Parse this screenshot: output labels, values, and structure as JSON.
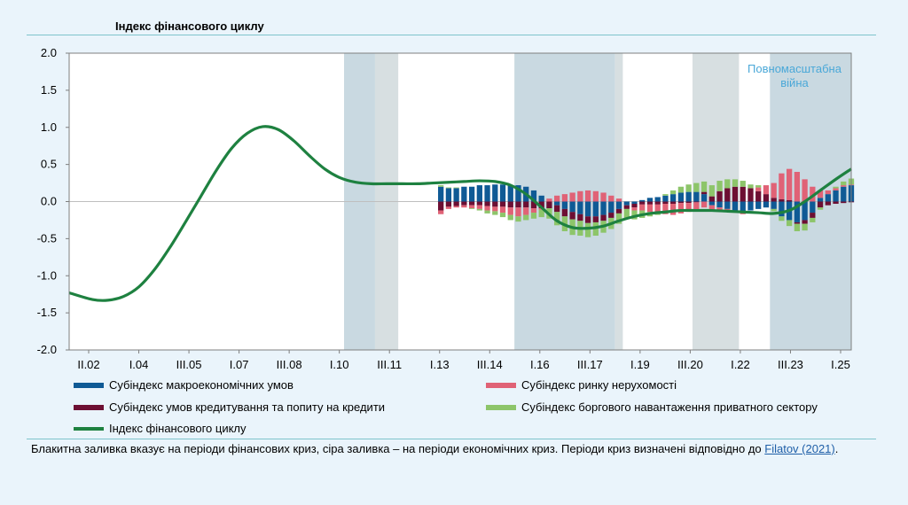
{
  "header": {
    "title": "Індекс фінансового циклу"
  },
  "colors": {
    "macro": "#0f5a95",
    "real_estate": "#e06276",
    "credit": "#6d0f33",
    "debt": "#8dc56a",
    "index": "#1e8140",
    "crisis_financial": "#c9d9e1",
    "crisis_economic": "#d7dfe1"
  },
  "annotation": "Повномасштабна війна",
  "chart_data": {
    "type": "bar",
    "title": "Індекс фінансового циклу",
    "ylim": [
      -2.0,
      2.0
    ],
    "yticks": [
      "2.0",
      "1.5",
      "1.0",
      "0.5",
      "0.0",
      "-0.5",
      "-1.0",
      "-1.5",
      "-2.0"
    ],
    "xticks": [
      "II.02",
      "I.04",
      "III.05",
      "I.07",
      "III.08",
      "I.10",
      "III.11",
      "I.13",
      "III.14",
      "I.16",
      "III.17",
      "I.19",
      "III.20",
      "I.22",
      "III.23",
      "I.25"
    ],
    "x_range_quarters": 93,
    "shaded_periods": [
      {
        "start": 35.5,
        "end": 39.5,
        "kind": "financial"
      },
      {
        "start": 39.5,
        "end": 42.5,
        "kind": "economic"
      },
      {
        "start": 57.5,
        "end": 70.5,
        "kind": "financial"
      },
      {
        "start": 70.5,
        "end": 71.5,
        "kind": "economic"
      },
      {
        "start": 80.5,
        "end": 86.5,
        "kind": "economic"
      },
      {
        "start": 90.5,
        "end": 101.5,
        "kind": "financial"
      }
    ],
    "bars_start_index": 48,
    "series": [
      {
        "name": "Субіндекс макроекономічних умов",
        "key": "macro",
        "values": [
          0.2,
          0.18,
          0.18,
          0.2,
          0.2,
          0.22,
          0.22,
          0.23,
          0.23,
          0.22,
          0.22,
          0.2,
          0.15,
          0.08,
          0.0,
          -0.05,
          -0.1,
          -0.14,
          -0.17,
          -0.2,
          -0.2,
          -0.18,
          -0.15,
          -0.1,
          -0.05,
          -0.03,
          0.02,
          0.05,
          0.06,
          0.08,
          0.1,
          0.12,
          0.13,
          0.13,
          0.1,
          -0.05,
          -0.08,
          -0.1,
          -0.12,
          -0.15,
          -0.12,
          -0.1,
          -0.08,
          -0.1,
          -0.2,
          -0.25,
          -0.28,
          -0.25,
          -0.15,
          0.05,
          0.1,
          0.15,
          0.2,
          0.22
        ]
      },
      {
        "name": "Субіндекс умов кредитування та попиту на кредити",
        "key": "credit",
        "values": [
          -0.12,
          -0.07,
          -0.06,
          -0.05,
          -0.05,
          -0.05,
          -0.06,
          -0.07,
          -0.07,
          -0.08,
          -0.08,
          -0.08,
          -0.09,
          -0.09,
          -0.09,
          -0.09,
          -0.1,
          -0.1,
          -0.09,
          -0.09,
          -0.08,
          -0.08,
          -0.07,
          -0.06,
          -0.05,
          -0.05,
          -0.04,
          -0.04,
          -0.04,
          -0.03,
          -0.03,
          -0.02,
          -0.02,
          -0.01,
          0.03,
          0.07,
          0.14,
          0.18,
          0.2,
          0.2,
          0.18,
          0.14,
          0.1,
          0.05,
          0.03,
          0.02,
          -0.02,
          -0.05,
          -0.07,
          -0.08,
          -0.05,
          -0.03,
          -0.02,
          -0.01
        ]
      },
      {
        "name": "Субіндекс ринку нерухомості",
        "key": "real_estate",
        "values": [
          -0.05,
          -0.03,
          -0.02,
          -0.03,
          -0.04,
          -0.05,
          -0.06,
          -0.06,
          -0.08,
          -0.1,
          -0.12,
          -0.1,
          -0.06,
          -0.02,
          0.04,
          0.08,
          0.1,
          0.12,
          0.14,
          0.15,
          0.14,
          0.12,
          0.08,
          0.04,
          0.0,
          -0.04,
          -0.08,
          -0.1,
          -0.12,
          -0.14,
          -0.15,
          -0.14,
          -0.12,
          -0.1,
          -0.08,
          -0.06,
          -0.05,
          -0.04,
          -0.03,
          -0.02,
          0.0,
          0.05,
          0.12,
          0.2,
          0.35,
          0.42,
          0.4,
          0.3,
          0.2,
          0.1,
          0.05,
          0.03,
          0.02,
          0.01
        ]
      },
      {
        "name": "Субіндекс боргового навантаження приватного сектору",
        "key": "debt",
        "values": [
          0.02,
          0.01,
          0.01,
          0.0,
          -0.01,
          -0.02,
          -0.04,
          -0.05,
          -0.06,
          -0.07,
          -0.07,
          -0.07,
          -0.08,
          -0.1,
          -0.14,
          -0.18,
          -0.2,
          -0.21,
          -0.2,
          -0.19,
          -0.18,
          -0.16,
          -0.15,
          -0.14,
          -0.13,
          -0.12,
          -0.1,
          -0.06,
          -0.02,
          0.02,
          0.05,
          0.08,
          0.1,
          0.12,
          0.14,
          0.15,
          0.14,
          0.12,
          0.1,
          0.08,
          0.05,
          0.03,
          0.0,
          -0.03,
          -0.06,
          -0.08,
          -0.1,
          -0.09,
          -0.06,
          -0.03,
          0.0,
          0.02,
          0.05,
          0.08
        ]
      },
      {
        "name": "Індекс фінансового циклу",
        "key": "index",
        "type": "line",
        "points": [
          [
            0,
            -1.23
          ],
          [
            3,
            -1.32
          ],
          [
            5,
            -1.33
          ],
          [
            7,
            -1.28
          ],
          [
            9,
            -1.15
          ],
          [
            11,
            -0.92
          ],
          [
            13,
            -0.62
          ],
          [
            15,
            -0.28
          ],
          [
            17,
            0.07
          ],
          [
            19,
            0.42
          ],
          [
            21,
            0.72
          ],
          [
            23,
            0.92
          ],
          [
            25,
            1.01
          ],
          [
            27,
            0.97
          ],
          [
            29,
            0.82
          ],
          [
            31,
            0.62
          ],
          [
            33,
            0.44
          ],
          [
            35,
            0.32
          ],
          [
            37,
            0.26
          ],
          [
            39,
            0.24
          ],
          [
            41,
            0.24
          ],
          [
            43,
            0.24
          ],
          [
            45,
            0.24
          ],
          [
            47,
            0.25
          ],
          [
            49,
            0.26
          ],
          [
            51,
            0.27
          ],
          [
            53,
            0.28
          ],
          [
            55,
            0.27
          ],
          [
            57,
            0.22
          ],
          [
            59,
            0.1
          ],
          [
            61,
            -0.08
          ],
          [
            63,
            -0.26
          ],
          [
            65,
            -0.35
          ],
          [
            67,
            -0.36
          ],
          [
            69,
            -0.33
          ],
          [
            71,
            -0.26
          ],
          [
            73,
            -0.2
          ],
          [
            75,
            -0.16
          ],
          [
            77,
            -0.14
          ],
          [
            79,
            -0.12
          ],
          [
            81,
            -0.12
          ],
          [
            83,
            -0.12
          ],
          [
            85,
            -0.13
          ],
          [
            87,
            -0.14
          ],
          [
            89,
            -0.15
          ],
          [
            91,
            -0.16
          ],
          [
            93,
            -0.12
          ],
          [
            95,
            0.0
          ],
          [
            97,
            0.15
          ],
          [
            99,
            0.3
          ],
          [
            101,
            0.44
          ]
        ]
      }
    ]
  },
  "legend": [
    {
      "label": "Субіндекс макроекономічних умов",
      "key": "macro"
    },
    {
      "label": "Субіндекс ринку нерухомості",
      "key": "real_estate"
    },
    {
      "label": "Субіндекс умов кредитування та попиту на кредити",
      "key": "credit"
    },
    {
      "label": "Субіндекс боргового навантаження приватного сектору",
      "key": "debt"
    },
    {
      "label": "Індекс фінансового циклу",
      "key": "index"
    }
  ],
  "note": {
    "text": "Блакитна заливка вказує на періоди фінансових криз, сіра заливка – на періоди економічних криз. Періоди криз визначені відповідно до ",
    "link": "Filatov (2021)",
    "tail": "."
  }
}
